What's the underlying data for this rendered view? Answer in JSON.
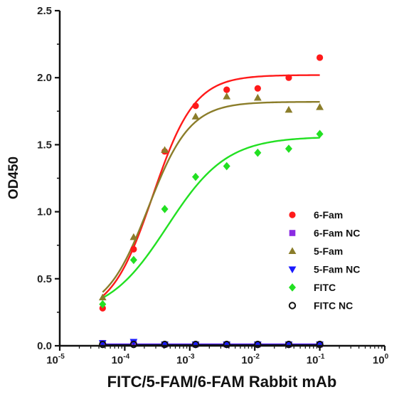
{
  "chart_data": {
    "type": "scatter",
    "title": "",
    "xlabel": "FITC/5-FAM/6-FAM Rabbit mAb",
    "ylabel": "OD450",
    "x_scale": "log",
    "xlim": [
      1e-05,
      1
    ],
    "ylim": [
      0,
      2.5
    ],
    "x_ticks": [
      {
        "value": 1e-05,
        "base": "10",
        "exp": "-5"
      },
      {
        "value": 0.0001,
        "base": "10",
        "exp": "-4"
      },
      {
        "value": 0.001,
        "base": "10",
        "exp": "-3"
      },
      {
        "value": 0.01,
        "base": "10",
        "exp": "-2"
      },
      {
        "value": 0.1,
        "base": "10",
        "exp": "-1"
      },
      {
        "value": 1,
        "base": "10",
        "exp": "0"
      }
    ],
    "y_ticks": [
      {
        "value": 0,
        "label": "0.0"
      },
      {
        "value": 0.5,
        "label": "0.5"
      },
      {
        "value": 1,
        "label": "1.0"
      },
      {
        "value": 1.5,
        "label": "1.5"
      },
      {
        "value": 2,
        "label": "2.0"
      },
      {
        "value": 2.5,
        "label": "2.5"
      }
    ],
    "grid": false,
    "legend_position": "bottom-right",
    "x": [
      4.57e-05,
      0.000137,
      0.000412,
      0.00123,
      0.0037,
      0.0111,
      0.0333,
      0.1
    ],
    "series": [
      {
        "name": "6-Fam",
        "marker": "circle",
        "color": "#ff1a1a",
        "values": [
          0.28,
          0.72,
          1.45,
          1.79,
          1.91,
          1.92,
          2.0,
          2.15
        ],
        "fit": {
          "bottom": 0.22,
          "top": 2.02,
          "ec50": 0.00027,
          "hill": 1.35
        }
      },
      {
        "name": "6-Fam NC",
        "marker": "square",
        "color": "#8a2be2",
        "values": [
          0.02,
          0.02,
          0.01,
          0.01,
          0.01,
          0.01,
          0.01,
          0.01
        ]
      },
      {
        "name": "5-Fam",
        "marker": "triangle-up",
        "color": "#8b7d2a",
        "values": [
          0.36,
          0.81,
          1.46,
          1.71,
          1.86,
          1.85,
          1.76,
          1.78
        ],
        "fit": {
          "bottom": 0.24,
          "top": 1.82,
          "ec50": 0.00023,
          "hill": 1.35
        }
      },
      {
        "name": "5-Fam NC",
        "marker": "triangle-down",
        "color": "#1a1aff",
        "values": [
          0.02,
          0.03,
          0.01,
          0.01,
          0.01,
          0.01,
          0.01,
          0.01
        ]
      },
      {
        "name": "FITC",
        "marker": "diamond",
        "color": "#22e022",
        "values": [
          0.31,
          0.64,
          1.02,
          1.26,
          1.34,
          1.44,
          1.47,
          1.58
        ],
        "fit": {
          "bottom": 0.22,
          "top": 1.56,
          "ec50": 0.00045,
          "hill": 0.95
        }
      },
      {
        "name": "FITC NC",
        "marker": "open-circle",
        "color": "#111111",
        "values": [
          0.01,
          0.01,
          0.01,
          0.01,
          0.01,
          0.01,
          0.01,
          0.01
        ]
      }
    ],
    "baseline_colors": [
      "#8a2be2",
      "#1a1aff",
      "#111111"
    ]
  }
}
